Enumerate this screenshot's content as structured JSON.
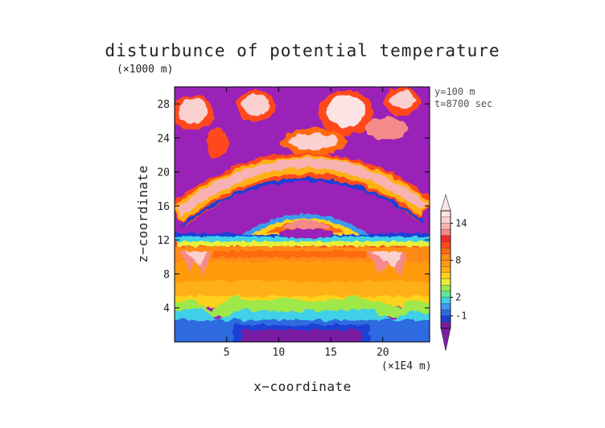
{
  "chart_data": {
    "type": "heatmap",
    "title": "disturbunce of potential temperature",
    "xlabel": "x−coordinate",
    "ylabel": "z−coordinate",
    "x_unit": "(×1E4 m)",
    "y_unit": "(×1000 m)",
    "xlim": [
      0,
      24.5
    ],
    "ylim": [
      0,
      30
    ],
    "x_ticks": [
      5,
      10,
      15,
      20
    ],
    "y_ticks": [
      4,
      8,
      12,
      16,
      20,
      24,
      28
    ],
    "annotations": [
      "y=100  m",
      "t=8700 sec"
    ],
    "colorbar": {
      "ticks": [
        -1,
        2,
        8,
        14
      ],
      "levels": [
        -3,
        -2,
        -1,
        0,
        1,
        2,
        3,
        4,
        5,
        6,
        7,
        8,
        9,
        10,
        11,
        12,
        13,
        14,
        15,
        16
      ],
      "colors": [
        "#7a1fa2",
        "#1e3fd6",
        "#2f6ae0",
        "#3a9bf0",
        "#3fd0e8",
        "#5ce89a",
        "#9ee84a",
        "#e6f03a",
        "#ffd21f",
        "#ffb014",
        "#ff9a10",
        "#ff8a12",
        "#ff6a10",
        "#ff4a1e",
        "#ee2a2a",
        "#f58a8a",
        "#f9b2b2",
        "#fbd0d0",
        "#fde4e4"
      ],
      "extend": "both"
    },
    "colors": {
      "background_field": "#9a22b8",
      "frame": "#000000"
    }
  }
}
